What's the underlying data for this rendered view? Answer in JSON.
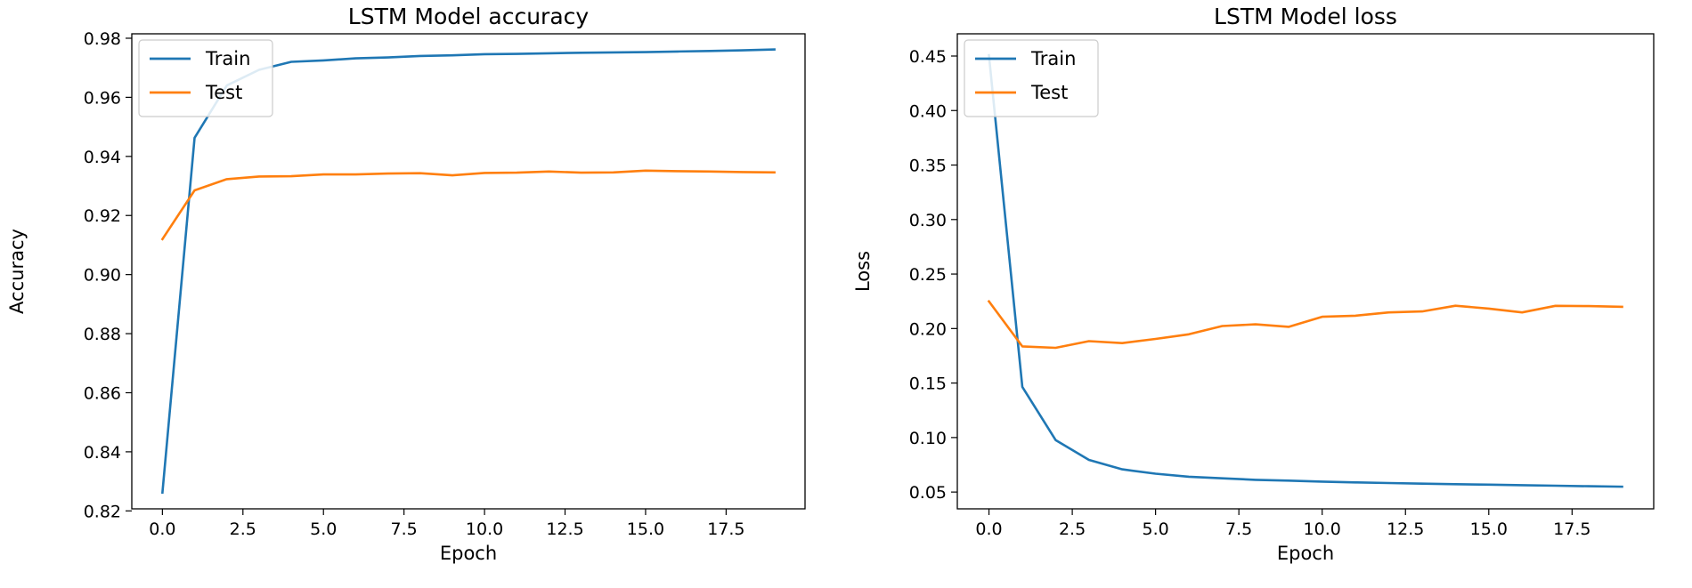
{
  "chart_data": [
    {
      "type": "line",
      "title": "LSTM Model accuracy",
      "xlabel": "Epoch",
      "ylabel": "Accuracy",
      "xlim": [
        -0.95,
        19.95
      ],
      "ylim": [
        0.8207,
        0.9815
      ],
      "xticks": [
        0.0,
        2.5,
        5.0,
        7.5,
        10.0,
        12.5,
        15.0,
        17.5
      ],
      "xtick_labels": [
        "0.0",
        "2.5",
        "5.0",
        "7.5",
        "10.0",
        "12.5",
        "15.0",
        "17.5"
      ],
      "yticks": [
        0.82,
        0.84,
        0.86,
        0.88,
        0.9,
        0.92,
        0.94,
        0.96,
        0.98
      ],
      "ytick_labels": [
        "0.82",
        "0.84",
        "0.86",
        "0.88",
        "0.90",
        "0.92",
        "0.94",
        "0.96",
        "0.98"
      ],
      "legend_position": "upper-left",
      "x": [
        0,
        1,
        2,
        3,
        4,
        5,
        6,
        7,
        8,
        9,
        10,
        11,
        12,
        13,
        14,
        15,
        16,
        17,
        18,
        19
      ],
      "series": [
        {
          "name": "Train",
          "color": "#1f77b4",
          "values": [
            0.8262,
            0.9463,
            0.964,
            0.9693,
            0.972,
            0.9725,
            0.9732,
            0.9735,
            0.974,
            0.9742,
            0.9746,
            0.9747,
            0.9749,
            0.9751,
            0.9752,
            0.9753,
            0.9755,
            0.9757,
            0.9759,
            0.9762
          ]
        },
        {
          "name": "Test",
          "color": "#ff7f0e",
          "values": [
            0.912,
            0.9285,
            0.9323,
            0.9332,
            0.9333,
            0.9339,
            0.9339,
            0.9342,
            0.9343,
            0.9336,
            0.9344,
            0.9345,
            0.9349,
            0.9345,
            0.9346,
            0.9352,
            0.935,
            0.9349,
            0.9347,
            0.9346
          ]
        }
      ]
    },
    {
      "type": "line",
      "title": "LSTM Model loss",
      "xlabel": "Epoch",
      "ylabel": "Loss",
      "xlim": [
        -0.95,
        19.95
      ],
      "ylim": [
        0.0346,
        0.4704
      ],
      "xticks": [
        0.0,
        2.5,
        5.0,
        7.5,
        10.0,
        12.5,
        15.0,
        17.5
      ],
      "xtick_labels": [
        "0.0",
        "2.5",
        "5.0",
        "7.5",
        "10.0",
        "12.5",
        "15.0",
        "17.5"
      ],
      "yticks": [
        0.05,
        0.1,
        0.15,
        0.2,
        0.25,
        0.3,
        0.35,
        0.4,
        0.45
      ],
      "ytick_labels": [
        "0.05",
        "0.10",
        "0.15",
        "0.20",
        "0.25",
        "0.30",
        "0.35",
        "0.40",
        "0.45"
      ],
      "legend_position": "upper-left",
      "x": [
        0,
        1,
        2,
        3,
        4,
        5,
        6,
        7,
        8,
        9,
        10,
        11,
        12,
        13,
        14,
        15,
        16,
        17,
        18,
        19
      ],
      "series": [
        {
          "name": "Train",
          "color": "#1f77b4",
          "values": [
            0.4508,
            0.1465,
            0.0977,
            0.0795,
            0.0708,
            0.0668,
            0.0641,
            0.0626,
            0.0612,
            0.0605,
            0.0596,
            0.0588,
            0.0583,
            0.0577,
            0.0572,
            0.0568,
            0.0563,
            0.0558,
            0.0553,
            0.0549
          ]
        },
        {
          "name": "Test",
          "color": "#ff7f0e",
          "values": [
            0.2249,
            0.1836,
            0.1823,
            0.1884,
            0.1866,
            0.1905,
            0.1947,
            0.2023,
            0.2039,
            0.2016,
            0.2108,
            0.2118,
            0.2148,
            0.2157,
            0.2209,
            0.2183,
            0.2148,
            0.2208,
            0.2206,
            0.2199
          ]
        }
      ]
    }
  ]
}
